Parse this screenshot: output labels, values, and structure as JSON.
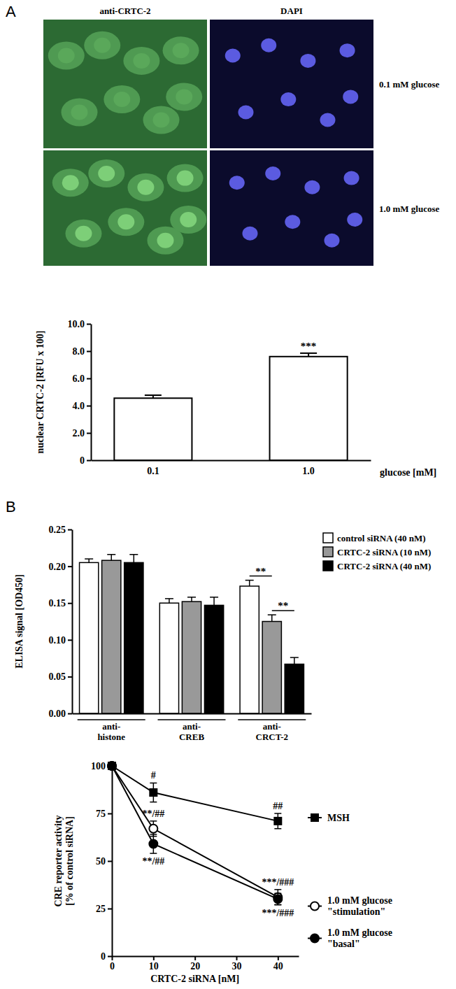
{
  "panel_labels": [
    "A",
    "B"
  ],
  "micrographs": {
    "columns": [
      "anti-CRTC-2",
      "DAPI"
    ],
    "rows": [
      "0.1 mM glucose",
      "1.0 mM glucose"
    ]
  },
  "chart_data": [
    {
      "type": "bar",
      "categories": [
        "0.1",
        "1.0"
      ],
      "values": [
        4.55,
        7.6
      ],
      "errors": [
        0.22,
        0.25
      ],
      "color": "#ffffff",
      "ylim": [
        0,
        10
      ],
      "yticks": [
        0,
        {
          "value": 2,
          "label": "2.0"
        },
        {
          "value": 4,
          "label": "4.0"
        },
        {
          "value": 6,
          "label": "6.0"
        },
        {
          "value": 8,
          "label": "8.0"
        },
        {
          "value": 10,
          "label": "10.0"
        }
      ],
      "y_label": "nuclear CRTC-2 [RFU x 100]",
      "x_label": "glucose [mM]",
      "annotations": [
        {
          "text": "***",
          "category": 1
        }
      ]
    },
    {
      "type": "bar",
      "categories": [
        "anti-\nhistone",
        "anti-\nCREB",
        "anti-\nCRCT-2"
      ],
      "series": [
        {
          "name": "control siRNA (40 nM)",
          "color": "#ffffff",
          "values": [
            0.205,
            0.15,
            0.173
          ],
          "errors": [
            0.005,
            0.006,
            0.008
          ]
        },
        {
          "name": "CRTC-2 siRNA (10 nM)",
          "color": "#999999",
          "values": [
            0.208,
            0.152,
            0.125
          ],
          "errors": [
            0.008,
            0.006,
            0.009
          ]
        },
        {
          "name": "CRTC-2 siRNA (40 nM)",
          "color": "#000000",
          "values": [
            0.205,
            0.147,
            0.067
          ],
          "errors": [
            0.011,
            0.011,
            0.009
          ]
        }
      ],
      "ylim": [
        0,
        0.25
      ],
      "yticks": [
        {
          "value": 0,
          "label": "0.00"
        },
        0.05,
        {
          "value": 0.1,
          "label": "0.10"
        },
        0.15,
        {
          "value": 0.2,
          "label": "0.20"
        },
        0.25
      ],
      "y_label": "ELISA signal [OD450]",
      "legend": "top-right",
      "annotations": [
        {
          "text": "**",
          "category": 2,
          "from": 0,
          "to": 1
        },
        {
          "text": "**",
          "category": 2,
          "from": 1,
          "to": 2
        }
      ]
    },
    {
      "type": "line",
      "x": [
        0,
        10,
        40
      ],
      "series": [
        {
          "name": "MSH",
          "color": "#000000",
          "marker": "square",
          "values": [
            100,
            86,
            71
          ],
          "errors": [
            0,
            5,
            4
          ],
          "point_labels": [
            null,
            "#",
            "##"
          ]
        },
        {
          "name": "1.0 mM glucose\n\"stimulation\"",
          "color": "#000000",
          "marker": "open-circle",
          "values": [
            100,
            67,
            31
          ],
          "errors": [
            0,
            4,
            4
          ],
          "point_labels": [
            null,
            "**/##",
            "***/###"
          ]
        },
        {
          "name": "1.0 mM glucose\n\"basal\"",
          "color": "#000000",
          "marker": "circle",
          "values": [
            100,
            59,
            30
          ],
          "errors": [
            0,
            5,
            3
          ],
          "point_labels": [
            null,
            "**/##",
            "***/###"
          ]
        }
      ],
      "xlim": [
        0,
        45
      ],
      "xticks": [
        0,
        10,
        20,
        30,
        40
      ],
      "ylim": [
        0,
        100
      ],
      "yticks": [
        0,
        25,
        50,
        75,
        100
      ],
      "x_label": "CRTC-2 siRNA [nM]",
      "y_label": "CRE reporter activity\n[% of control siRNA]",
      "legend": "right"
    }
  ]
}
